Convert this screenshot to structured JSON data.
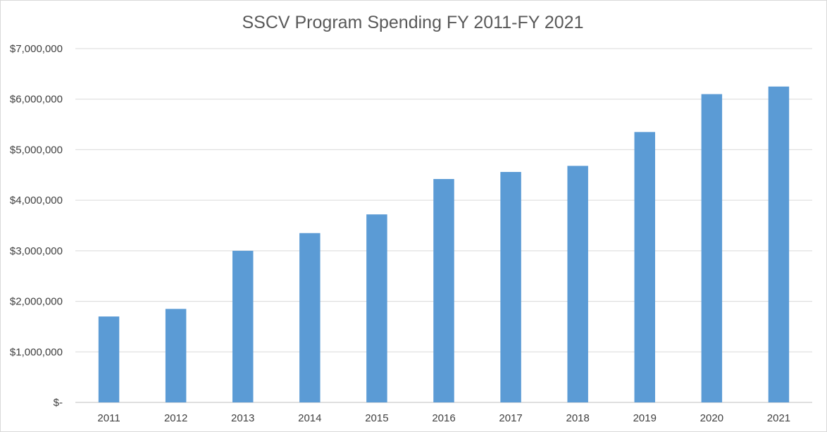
{
  "chart_data": {
    "type": "bar",
    "title": "SSCV Program Spending FY 2011-FY 2021",
    "xlabel": "",
    "ylabel": "",
    "categories": [
      "2011",
      "2012",
      "2013",
      "2014",
      "2015",
      "2016",
      "2017",
      "2018",
      "2019",
      "2020",
      "2021"
    ],
    "values": [
      1700000,
      1850000,
      3000000,
      3350000,
      3720000,
      4420000,
      4560000,
      4680000,
      5350000,
      6100000,
      6250000
    ],
    "ylim": [
      0,
      7000000
    ],
    "y_ticks": [
      0,
      1000000,
      2000000,
      3000000,
      4000000,
      5000000,
      6000000,
      7000000
    ],
    "y_tick_labels": [
      "$-",
      "$1,000,000",
      "$2,000,000",
      "$3,000,000",
      "$4,000,000",
      "$5,000,000",
      "$6,000,000",
      "$7,000,000"
    ],
    "grid": true,
    "legend": "none",
    "bar_color": "#5b9bd5"
  }
}
